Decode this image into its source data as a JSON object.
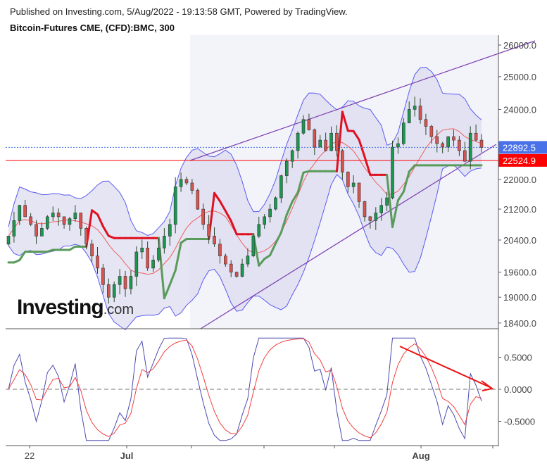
{
  "header": {
    "published": "Published on Investing.com, 5/Aug/2022 - 19:13:58 GMT, Powered by TradingView.",
    "symbol": "Bitcoin-Futures CME, (CFD):BMC, 300"
  },
  "logo": {
    "main": "Investing",
    "suffix": ".com"
  },
  "chart_data": [
    {
      "type": "candlestick",
      "scale": "log",
      "ylim": [
        18200,
        26300
      ],
      "y_ticks": [
        "26000.0",
        "25000.0",
        "24000.0",
        "22000.0",
        "21200.0",
        "20400.0",
        "19600.0",
        "19000.0",
        "18400.0"
      ],
      "y_tick_values": [
        26000,
        25000,
        24000,
        22000,
        21200,
        20400,
        19600,
        19000,
        18400
      ],
      "x_ticks": [
        "22",
        "Jul",
        "Aug"
      ],
      "closes": [
        20500,
        20900,
        21300,
        21000,
        20800,
        20500,
        20700,
        21000,
        21100,
        21000,
        20800,
        20950,
        21100,
        20700,
        20300,
        20000,
        19700,
        19300,
        19000,
        19300,
        19500,
        19200,
        19500,
        20100,
        20200,
        19700,
        19900,
        20200,
        20500,
        20800,
        21800,
        22000,
        21900,
        21700,
        21200,
        20800,
        20500,
        20300,
        20000,
        19800,
        19600,
        19500,
        19800,
        20000,
        20500,
        20800,
        21000,
        21200,
        21500,
        22100,
        22500,
        22800,
        23300,
        23700,
        23400,
        22900,
        23100,
        22800,
        23300,
        22800,
        22200,
        21800,
        21900,
        21400,
        21000,
        20900,
        21100,
        21300,
        21500,
        22900,
        23000,
        23600,
        24000,
        24100,
        23700,
        23500,
        23200,
        23000,
        22900,
        23200,
        23100,
        22800,
        22500,
        23300,
        23100,
        22892.5
      ],
      "price_lines": [
        {
          "label": "22892.5",
          "value": 22892.5,
          "color": "#4a72e8",
          "style": "dotted"
        },
        {
          "label": "22524.9",
          "value": 22524.9,
          "color": "#ff0000",
          "style": "solid"
        }
      ],
      "indicators": [
        "bollinger-bands",
        "supertrend",
        "ascending-channel"
      ],
      "colors": {
        "up": "#1a9850",
        "down": "#d9534f",
        "band": "#5b5bf0",
        "band_fill": "#dcdcef",
        "supertrend_up": "#5a9a5a",
        "supertrend_down": "#e01020",
        "channel": "#7b3fb0"
      }
    },
    {
      "type": "line",
      "y_ticks": [
        "0.5000",
        "0.0000",
        "-0.5000"
      ],
      "y_tick_values": [
        0.5,
        0,
        -0.5
      ],
      "zero_line": "dashed",
      "series_colors": [
        "#4b4bb0",
        "#f04040"
      ],
      "annotation": "red downward trend arrow from late-July peak toward zero line"
    }
  ]
}
